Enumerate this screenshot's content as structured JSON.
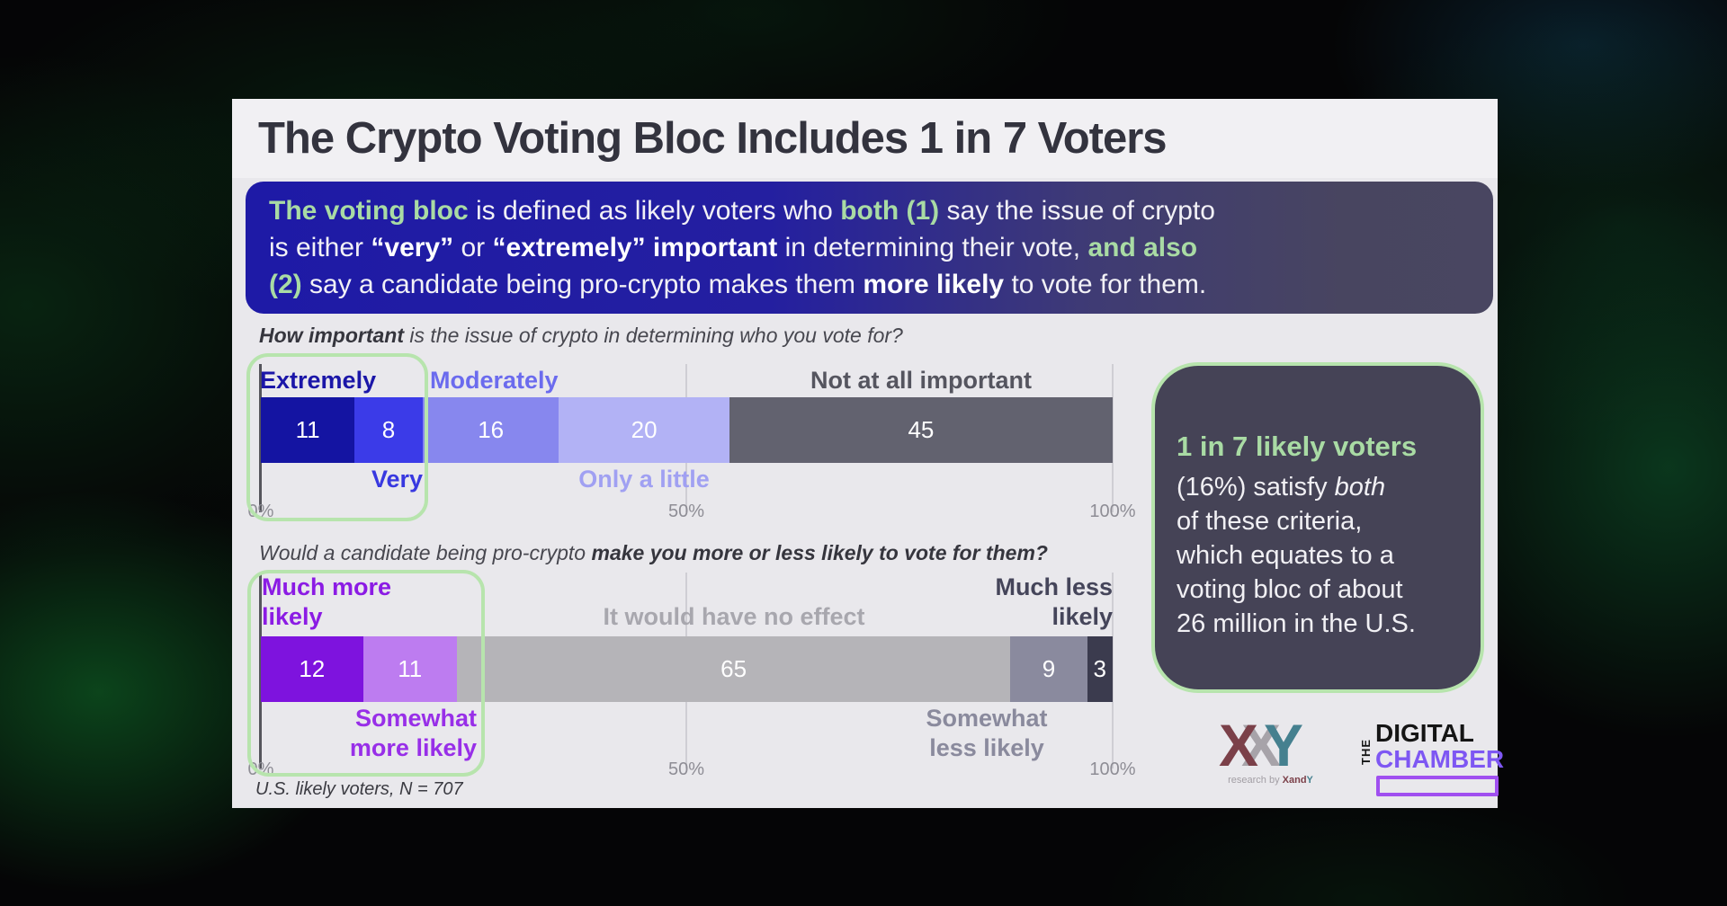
{
  "window": {
    "title": "The Crypto Voting Bloc Includes 1 in 7 Voters"
  },
  "banner": {
    "rich": [
      {
        "t": "The voting bloc",
        "s": "g"
      },
      {
        "t": " is defined as likely voters who ",
        "s": ""
      },
      {
        "t": "both (1)",
        "s": "g"
      },
      {
        "t": " say the issue of crypto",
        "s": ""
      },
      {
        "t": "",
        "s": "br"
      },
      {
        "t": "is either ",
        "s": ""
      },
      {
        "t": "“very”",
        "s": "b"
      },
      {
        "t": " or ",
        "s": ""
      },
      {
        "t": "“extremely” important",
        "s": "b"
      },
      {
        "t": " in determining their vote, ",
        "s": ""
      },
      {
        "t": "and also",
        "s": "g"
      },
      {
        "t": "",
        "s": "br"
      },
      {
        "t": "(2)",
        "s": "g"
      },
      {
        "t": " say a candidate being pro-crypto makes them ",
        "s": ""
      },
      {
        "t": "more likely",
        "s": "b"
      },
      {
        "t": " to vote for them.",
        "s": ""
      }
    ],
    "highlight_color": "#a9dba4"
  },
  "chart_data": [
    {
      "type": "bar",
      "orientation": "horizontal",
      "stacked": true,
      "question": [
        {
          "t": "How important",
          "s": "b"
        },
        {
          "t": " is the issue of crypto in determining who you vote for?",
          "s": ""
        }
      ],
      "categories": [
        "Extremely",
        "Very",
        "Moderately",
        "Only a little",
        "Not at all important"
      ],
      "values": [
        11,
        8,
        16,
        20,
        45
      ],
      "colors": [
        "#1414a2",
        "#3b3be8",
        "#8787ee",
        "#b2b2f5",
        "#62626f"
      ],
      "xlim": [
        0,
        100
      ],
      "ticks": [
        "0%",
        "50%",
        "100%"
      ],
      "labels": {
        "extremely": {
          "text": "Extremely",
          "color": "#1b16a8"
        },
        "moderately": {
          "text": "Moderately",
          "color": "#6b6bee"
        },
        "not_at_all": {
          "text": "Not at all important",
          "color": "#55555f"
        },
        "very": {
          "text": "Very",
          "color": "#3838e0"
        },
        "only_a_little": {
          "text": "Only a little",
          "color": "#a0a0f2"
        }
      },
      "highlight_note": "Extremely + Very outlined in green"
    },
    {
      "type": "bar",
      "orientation": "horizontal",
      "stacked": true,
      "question": [
        {
          "t": "Would a candidate being pro-crypto ",
          "s": ""
        },
        {
          "t": "make you more or less likely to vote for them?",
          "s": "b"
        }
      ],
      "categories": [
        "Much more likely",
        "Somewhat more likely",
        "It would have no effect",
        "Somewhat less likely",
        "Much less likely"
      ],
      "values": [
        12,
        11,
        65,
        9,
        3
      ],
      "colors": [
        "#7e13de",
        "#bd7cf0",
        "#b5b4b8",
        "#8a8a9e",
        "#3b3b4e"
      ],
      "xlim": [
        0,
        100
      ],
      "ticks": [
        "0%",
        "50%",
        "100%"
      ],
      "labels": {
        "much_more": {
          "text": "Much more likely",
          "color": "#8b1be4"
        },
        "no_effect": {
          "text": "It would have no effect",
          "color": "#a8a7ae"
        },
        "much_less": {
          "text": "Much less likely",
          "color": "#45455a"
        },
        "somewhat_more": {
          "text": "Somewhat more likely",
          "color": "#982fe8"
        },
        "somewhat_less": {
          "text": "Somewhat less likely",
          "color": "#8a8a9d"
        }
      },
      "highlight_note": "Much more + Somewhat more likely outlined in green"
    }
  ],
  "callout": {
    "heading": "1 in 7 likely voters",
    "body": [
      {
        "t": "(16%) satisfy ",
        "s": ""
      },
      {
        "t": "both",
        "s": "i"
      },
      {
        "t": "",
        "s": "br"
      },
      {
        "t": "of these criteria,",
        "s": ""
      },
      {
        "t": "",
        "s": "br"
      },
      {
        "t": "which equates to a",
        "s": ""
      },
      {
        "t": "",
        "s": "br"
      },
      {
        "t": "voting bloc of about",
        "s": ""
      },
      {
        "t": "",
        "s": "br"
      },
      {
        "t": "26 million in the U.S.",
        "s": ""
      }
    ],
    "bg": "#454356",
    "border_color": "#b7e4ad",
    "heading_color": "#a9dba4"
  },
  "footnote": "U.S. likely voters, N = 707",
  "logos": {
    "xandy": {
      "letter_x1": "X",
      "letter_x2": "X",
      "letter_y": "Y",
      "caption": "research by ",
      "caption_brand_a": "Xand",
      "caption_brand_b": "Y"
    },
    "digital_chamber": {
      "the": "THE",
      "digital": "DIGITAL",
      "chamber": "CHAMBER"
    }
  }
}
